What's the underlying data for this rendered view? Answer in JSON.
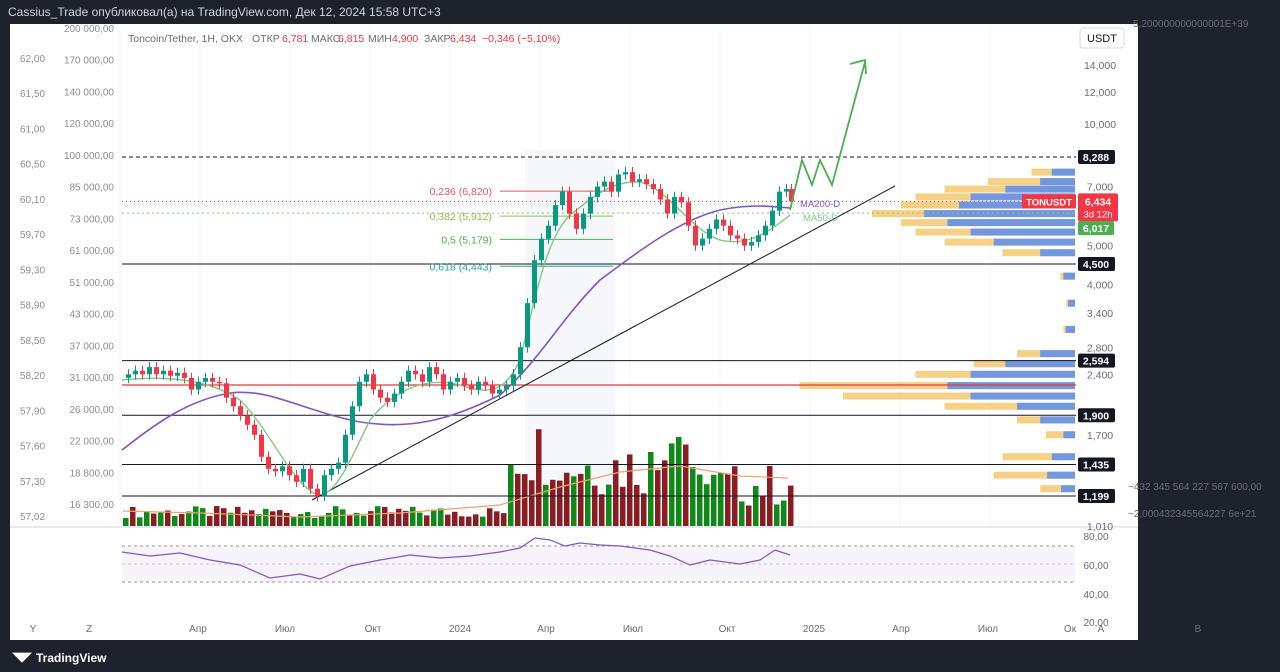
{
  "header": {
    "text": "Cassius_Trade опубликовал(а) на TradingView.com, Дек 12, 2024 15:58 UTC+3"
  },
  "footer": {
    "brand": "TradingView"
  },
  "chart_data": {
    "type": "candlestick",
    "symbol_line": {
      "name": "Toncoin/Tether, 1Н, OKX",
      "o_label": "ОТКР",
      "o": "6,781",
      "h_label": "МАКС",
      "h": "6,815",
      "l_label": "МИН",
      "l": "4,900",
      "c_label": "ЗАКР",
      "c": "6,434",
      "change": "−0,346 (−5,10%)"
    },
    "currency": "USDT",
    "price_axis": [
      "14,000",
      "12,000",
      "10,000",
      "8,288",
      "7,000",
      "6,434",
      "3d 12h",
      "6,017",
      "5,000",
      "4,500",
      "4,000",
      "3,400",
      "2,800",
      "2,594",
      "2,400",
      "1,900",
      "1,700",
      "1,435",
      "1,199",
      "1,010"
    ],
    "left_axis_1": [
      "62,00",
      "61,50",
      "61,00",
      "60,50",
      "60,10",
      "59,70",
      "59,30",
      "58,90",
      "58,50",
      "58,20",
      "57,90",
      "57,60",
      "57,30",
      "57,02"
    ],
    "left_axis_2": [
      "200 000,00",
      "170 000,00",
      "140 000,00",
      "120 000,00",
      "100 000,00",
      "85 000,00",
      "73 000,00",
      "61 000,00",
      "51 000,00",
      "43 000,00",
      "37 000,00",
      "31 000,00",
      "26 000,00",
      "22 000,00",
      "18 800,00",
      "16 300,00"
    ],
    "far_right_labels": [
      "5,200000000000001E+39",
      "−432 345 564 227 567 600,00",
      "−2,000432345564227 6e+21"
    ],
    "price_tag": {
      "symbol": "TONUSDT",
      "value": "6,434",
      "countdown": "3d 12h"
    },
    "levels": [
      {
        "label": "8,288",
        "price": 8.288,
        "style": "dashed"
      },
      {
        "label": "4,500",
        "price": 4.5,
        "style": "solid"
      },
      {
        "label": "2,594",
        "price": 2.594,
        "style": "solid"
      },
      {
        "label": "1,900",
        "price": 1.9,
        "style": "solid"
      },
      {
        "label": "1,435",
        "price": 1.435,
        "style": "solid"
      },
      {
        "label": "1,199",
        "price": 1.199,
        "style": "solid"
      }
    ],
    "fib": [
      {
        "label": "0,236 (6,820)",
        "price": 6.82,
        "color": "#e05a5a"
      },
      {
        "label": "0,382 (5,912)",
        "price": 5.912,
        "color": "#8bc34a"
      },
      {
        "label": "0,5 (5,179)",
        "price": 5.179,
        "color": "#4caf50"
      },
      {
        "label": "0,618 (4,443)",
        "price": 4.443,
        "color": "#26a69a"
      }
    ],
    "ma_labels": {
      "ma200": "MA200-D",
      "ma50": "MA50-D"
    },
    "ma_value_tag": "6,017",
    "x_labels": [
      "Апр",
      "Июл",
      "Окт",
      "2024",
      "Апр",
      "Июл",
      "Окт",
      "2025",
      "Апр",
      "Июл",
      "Ок"
    ],
    "rsi_axis": [
      "80,00",
      "60,00",
      "40,00",
      "20,00"
    ],
    "bottom_letters": [
      "Y",
      "Z",
      "A",
      "B"
    ],
    "colors": {
      "up": "#089981",
      "down": "#f23645",
      "ma200": "#7e57c2",
      "ma50": "#81c784",
      "arrow": "#4caf50"
    }
  }
}
